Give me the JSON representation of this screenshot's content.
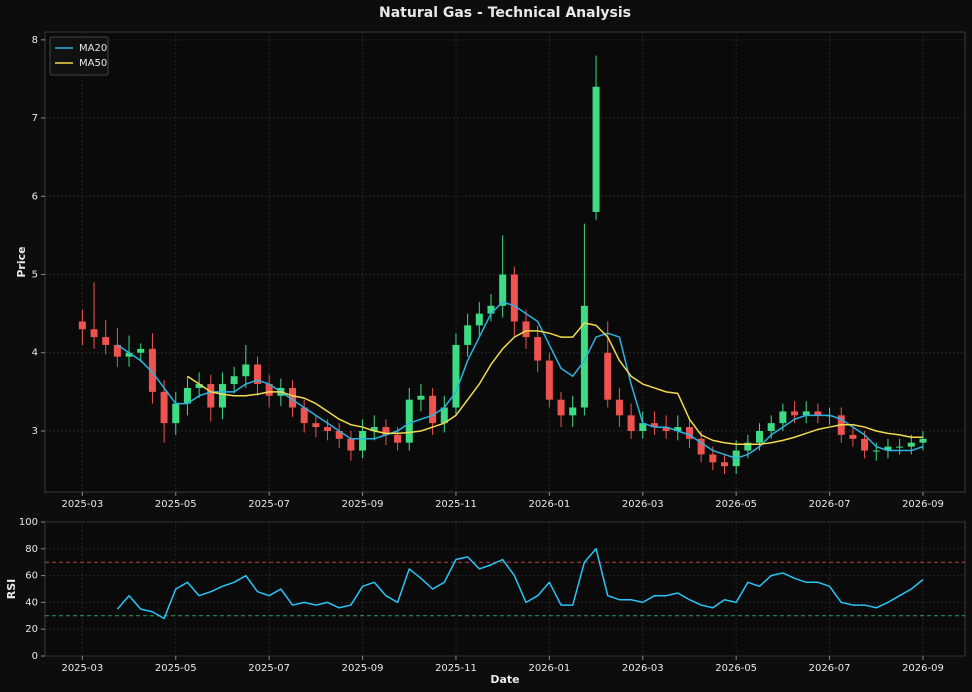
{
  "chart_data": [
    {
      "type": "candlestick",
      "title": "Natural Gas - Technical Analysis",
      "y_label": "Price",
      "up_color": "#3ddc84",
      "down_color": "#ef5350",
      "grid": true,
      "legend": "upper left",
      "xlim": [
        -0.8,
        18.9
      ],
      "xticks": [
        {
          "value": 0,
          "label": "2025-03"
        },
        {
          "value": 2,
          "label": "2025-05"
        },
        {
          "value": 4,
          "label": "2025-07"
        },
        {
          "value": 6,
          "label": "2025-09"
        },
        {
          "value": 8,
          "label": "2025-11"
        },
        {
          "value": 10,
          "label": "2026-01"
        },
        {
          "value": 12,
          "label": "2026-03"
        },
        {
          "value": 14,
          "label": "2026-05"
        },
        {
          "value": 16,
          "label": "2026-07"
        },
        {
          "value": 18,
          "label": "2026-09"
        }
      ],
      "ylim": [
        2.22,
        8.1
      ],
      "yticks": [
        3,
        4,
        5,
        6,
        7,
        8
      ],
      "x": [
        0,
        0.25,
        0.5,
        0.75,
        1,
        1.25,
        1.5,
        1.75,
        2,
        2.25,
        2.5,
        2.75,
        3,
        3.25,
        3.5,
        3.75,
        4,
        4.25,
        4.5,
        4.75,
        5,
        5.25,
        5.5,
        5.75,
        6,
        6.25,
        6.5,
        6.75,
        7,
        7.25,
        7.5,
        7.75,
        8,
        8.25,
        8.5,
        8.75,
        9,
        9.25,
        9.5,
        9.75,
        10,
        10.25,
        10.5,
        10.75,
        11,
        11.25,
        11.5,
        11.75,
        12,
        12.25,
        12.5,
        12.75,
        13,
        13.25,
        13.5,
        13.75,
        14,
        14.25,
        14.5,
        14.75,
        15,
        15.25,
        15.5,
        15.75,
        16,
        16.25,
        16.5,
        16.75,
        17,
        17.25,
        17.5,
        17.75,
        18
      ],
      "open": [
        4.4,
        4.3,
        4.2,
        4.1,
        3.95,
        4.0,
        4.05,
        3.5,
        3.1,
        3.35,
        3.55,
        3.6,
        3.3,
        3.6,
        3.7,
        3.85,
        3.6,
        3.45,
        3.55,
        3.3,
        3.1,
        3.05,
        3.0,
        2.9,
        2.75,
        3.0,
        3.05,
        2.95,
        2.85,
        3.4,
        3.45,
        3.1,
        3.3,
        4.1,
        4.35,
        4.5,
        4.6,
        5.0,
        4.4,
        4.2,
        3.9,
        3.4,
        3.2,
        3.3,
        5.8,
        4.0,
        3.4,
        3.2,
        3.0,
        3.1,
        3.05,
        3.0,
        3.05,
        2.9,
        2.7,
        2.6,
        2.55,
        2.75,
        2.85,
        3.0,
        3.1,
        3.25,
        3.2,
        3.25,
        3.2,
        3.2,
        2.95,
        2.9,
        2.75,
        2.75,
        2.8,
        2.8,
        2.85
      ],
      "high": [
        4.55,
        4.9,
        4.42,
        4.32,
        4.22,
        4.12,
        4.25,
        3.65,
        3.5,
        3.7,
        3.75,
        3.72,
        3.75,
        3.82,
        4.1,
        3.95,
        3.72,
        3.67,
        3.65,
        3.4,
        3.2,
        3.15,
        3.1,
        3.0,
        3.15,
        3.2,
        3.15,
        3.05,
        3.55,
        3.6,
        3.55,
        3.45,
        4.25,
        4.5,
        4.65,
        4.75,
        5.5,
        5.1,
        4.55,
        4.35,
        4.0,
        3.5,
        3.45,
        5.65,
        7.8,
        4.4,
        3.55,
        3.35,
        3.25,
        3.25,
        3.2,
        3.2,
        3.15,
        3.0,
        2.8,
        2.7,
        2.88,
        2.95,
        3.1,
        3.2,
        3.35,
        3.38,
        3.38,
        3.35,
        3.3,
        3.3,
        3.05,
        3.0,
        2.85,
        2.9,
        2.9,
        2.95,
        3.0
      ],
      "low": [
        4.1,
        4.05,
        3.98,
        3.82,
        3.82,
        3.88,
        3.35,
        2.85,
        2.95,
        3.2,
        3.42,
        3.12,
        3.15,
        3.48,
        3.55,
        3.45,
        3.3,
        3.32,
        3.18,
        2.98,
        2.92,
        2.88,
        2.78,
        2.62,
        2.65,
        2.88,
        2.82,
        2.75,
        2.75,
        3.25,
        2.95,
        2.98,
        3.2,
        3.95,
        4.2,
        4.4,
        4.45,
        4.2,
        4.05,
        3.75,
        3.3,
        3.05,
        3.05,
        3.2,
        5.7,
        3.3,
        3.05,
        2.9,
        2.9,
        2.95,
        2.9,
        2.88,
        2.78,
        2.6,
        2.5,
        2.45,
        2.45,
        2.65,
        2.75,
        2.9,
        3.0,
        3.1,
        3.1,
        3.1,
        3.08,
        2.85,
        2.8,
        2.65,
        2.62,
        2.65,
        2.7,
        2.7,
        2.75
      ],
      "close": [
        4.3,
        4.2,
        4.1,
        3.95,
        4.0,
        4.05,
        3.5,
        3.1,
        3.35,
        3.55,
        3.6,
        3.3,
        3.6,
        3.7,
        3.85,
        3.6,
        3.45,
        3.55,
        3.3,
        3.1,
        3.05,
        3.0,
        2.9,
        2.75,
        3.0,
        3.05,
        2.95,
        2.85,
        3.4,
        3.45,
        3.1,
        3.3,
        4.1,
        4.35,
        4.5,
        4.6,
        5.0,
        4.4,
        4.2,
        3.9,
        3.4,
        3.2,
        3.3,
        4.6,
        7.4,
        3.4,
        3.2,
        3.0,
        3.1,
        3.05,
        3.0,
        3.05,
        2.9,
        2.7,
        2.6,
        2.55,
        2.75,
        2.85,
        3.0,
        3.1,
        3.25,
        3.2,
        3.25,
        3.2,
        3.2,
        2.95,
        2.9,
        2.75,
        2.75,
        2.8,
        2.8,
        2.85,
        2.9
      ],
      "series": [
        {
          "name": "MA20",
          "color": "#2bb3e0",
          "values": [
            null,
            null,
            null,
            4.1,
            4.0,
            3.9,
            3.75,
            3.55,
            3.35,
            3.35,
            3.45,
            3.5,
            3.5,
            3.5,
            3.6,
            3.65,
            3.6,
            3.5,
            3.4,
            3.3,
            3.2,
            3.1,
            3.0,
            2.9,
            2.9,
            2.9,
            2.95,
            3.0,
            3.1,
            3.15,
            3.2,
            3.3,
            3.5,
            3.9,
            4.2,
            4.5,
            4.65,
            4.6,
            4.5,
            4.4,
            4.1,
            3.8,
            3.7,
            3.9,
            4.2,
            4.25,
            4.2,
            3.6,
            3.1,
            3.05,
            3.05,
            3.0,
            2.95,
            2.85,
            2.75,
            2.7,
            2.65,
            2.7,
            2.8,
            2.95,
            3.05,
            3.15,
            3.2,
            3.2,
            3.2,
            3.15,
            3.05,
            2.95,
            2.8,
            2.75,
            2.75,
            2.75,
            2.8
          ]
        },
        {
          "name": "MA50",
          "color": "#f2d94e",
          "values": [
            null,
            null,
            null,
            null,
            null,
            null,
            null,
            null,
            null,
            3.7,
            3.6,
            3.5,
            3.47,
            3.45,
            3.45,
            3.47,
            3.5,
            3.5,
            3.45,
            3.42,
            3.35,
            3.25,
            3.15,
            3.08,
            3.05,
            3.0,
            2.97,
            2.97,
            2.98,
            3.0,
            3.05,
            3.1,
            3.2,
            3.4,
            3.6,
            3.85,
            4.05,
            4.2,
            4.28,
            4.28,
            4.25,
            4.2,
            4.2,
            4.38,
            4.35,
            4.2,
            3.9,
            3.7,
            3.6,
            3.55,
            3.5,
            3.48,
            3.15,
            2.95,
            2.88,
            2.85,
            2.83,
            2.83,
            2.83,
            2.85,
            2.88,
            2.92,
            2.97,
            3.02,
            3.05,
            3.08,
            3.08,
            3.05,
            3.0,
            2.97,
            2.95,
            2.92,
            2.92
          ]
        }
      ]
    },
    {
      "type": "line",
      "y_label": "RSI",
      "x_label": "Date",
      "grid": true,
      "xlim": [
        -0.8,
        18.9
      ],
      "xticks": [
        {
          "value": 0,
          "label": "2025-03"
        },
        {
          "value": 2,
          "label": "2025-05"
        },
        {
          "value": 4,
          "label": "2025-07"
        },
        {
          "value": 6,
          "label": "2025-09"
        },
        {
          "value": 8,
          "label": "2025-11"
        },
        {
          "value": 10,
          "label": "2026-01"
        },
        {
          "value": 12,
          "label": "2026-03"
        },
        {
          "value": 14,
          "label": "2026-05"
        },
        {
          "value": 16,
          "label": "2026-07"
        },
        {
          "value": 18,
          "label": "2026-09"
        }
      ],
      "ylim": [
        0,
        100
      ],
      "yticks": [
        0,
        20,
        40,
        60,
        80,
        100
      ],
      "reference_lines": [
        {
          "value": 70,
          "color": "#e05050"
        },
        {
          "value": 30,
          "color": "#2ecc71"
        }
      ],
      "x": [
        0,
        0.25,
        0.5,
        0.75,
        1,
        1.25,
        1.5,
        1.75,
        2,
        2.25,
        2.5,
        2.75,
        3,
        3.25,
        3.5,
        3.75,
        4,
        4.25,
        4.5,
        4.75,
        5,
        5.25,
        5.5,
        5.75,
        6,
        6.25,
        6.5,
        6.75,
        7,
        7.25,
        7.5,
        7.75,
        8,
        8.25,
        8.5,
        8.75,
        9,
        9.25,
        9.5,
        9.75,
        10,
        10.25,
        10.5,
        10.75,
        11,
        11.25,
        11.5,
        11.75,
        12,
        12.25,
        12.5,
        12.75,
        13,
        13.25,
        13.5,
        13.75,
        14,
        14.25,
        14.5,
        14.75,
        15,
        15.25,
        15.5,
        15.75,
        16,
        16.25,
        16.5,
        16.75,
        17,
        17.25,
        17.5,
        17.75,
        18
      ],
      "series": [
        {
          "color": "#29c5f6",
          "values": [
            null,
            null,
            null,
            35,
            45,
            35,
            33,
            28,
            50,
            55,
            45,
            48,
            52,
            55,
            60,
            48,
            45,
            50,
            38,
            40,
            38,
            40,
            36,
            38,
            52,
            55,
            45,
            40,
            65,
            58,
            50,
            55,
            72,
            74,
            65,
            68,
            72,
            60,
            40,
            45,
            55,
            38,
            38,
            70,
            80,
            45,
            42,
            42,
            40,
            45,
            45,
            47,
            42,
            38,
            36,
            42,
            40,
            55,
            52,
            60,
            62,
            58,
            55,
            55,
            52,
            40,
            38,
            38,
            36,
            40,
            45,
            50,
            57
          ]
        }
      ]
    }
  ]
}
